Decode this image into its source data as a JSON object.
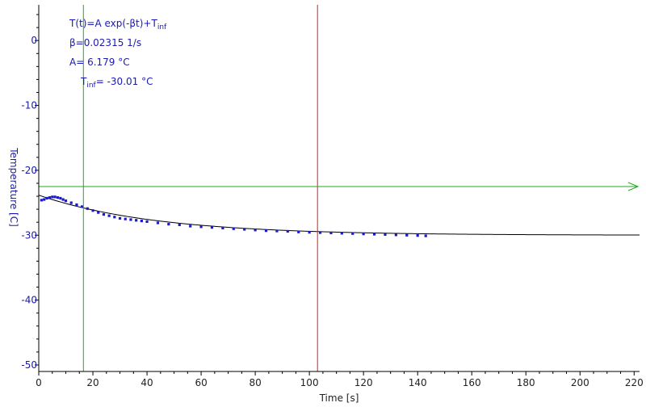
{
  "chart_data": {
    "type": "scatter",
    "title": "",
    "xlabel": "Time [s]",
    "ylabel": "Temperature [C]",
    "xlim": [
      0,
      222
    ],
    "ylim": [
      -51,
      5.5
    ],
    "x_ticks": [
      0,
      20,
      40,
      60,
      80,
      100,
      120,
      140,
      160,
      180,
      200,
      220
    ],
    "y_ticks": [
      0,
      -10,
      -20,
      -30,
      -40,
      -50
    ],
    "grid": false,
    "annotation": {
      "line1": "T(t)=A exp(-βt)+T",
      "line1_sub": "inf",
      "line2": "β=0.02315 1/s",
      "line3": "A= 6.179 °C",
      "line4_main": "T",
      "line4_sub": "inf",
      "line4_rest": "= -30.01 °C"
    },
    "cursors": {
      "vertical_green_x": 16.5,
      "vertical_red_x": 103,
      "horizontal_green_y": -22.5
    },
    "fit": {
      "A": 6.179,
      "beta": 0.02315,
      "t_inf": -30.01,
      "x_start": 0,
      "x_end": 222
    },
    "series": [
      {
        "x": [
          1,
          2,
          3,
          4,
          5,
          6,
          7,
          8,
          9,
          10,
          12,
          14,
          16,
          18,
          20,
          22,
          24,
          26,
          28,
          30,
          32,
          34,
          36,
          38,
          40,
          44,
          48,
          52,
          56,
          60,
          64,
          68,
          72,
          76,
          80,
          84,
          88,
          92,
          96,
          100,
          104,
          108,
          112,
          116,
          120,
          124,
          128,
          132,
          136,
          140,
          143
        ],
        "y": [
          -24.6,
          -24.5,
          -24.3,
          -24.2,
          -24.1,
          -24.1,
          -24.2,
          -24.3,
          -24.5,
          -24.7,
          -25.0,
          -25.3,
          -25.6,
          -25.9,
          -26.2,
          -26.5,
          -26.8,
          -27.0,
          -27.2,
          -27.4,
          -27.5,
          -27.6,
          -27.7,
          -27.8,
          -27.9,
          -28.1,
          -28.3,
          -28.4,
          -28.6,
          -28.7,
          -28.8,
          -28.9,
          -29.0,
          -29.1,
          -29.2,
          -29.3,
          -29.35,
          -29.4,
          -29.5,
          -29.55,
          -29.6,
          -29.65,
          -29.7,
          -29.75,
          -29.8,
          -29.85,
          -29.9,
          -29.95,
          -30.0,
          -30.05,
          -30.1
        ]
      }
    ],
    "colors": {
      "data": "#1a1acc",
      "fit": "#000000",
      "cursor_green": "#22aa22",
      "cursor_red": "#cc2222",
      "axis": "#000000",
      "y_axis_text": "#1a1aa8",
      "x_axis_text": "#222222"
    }
  }
}
